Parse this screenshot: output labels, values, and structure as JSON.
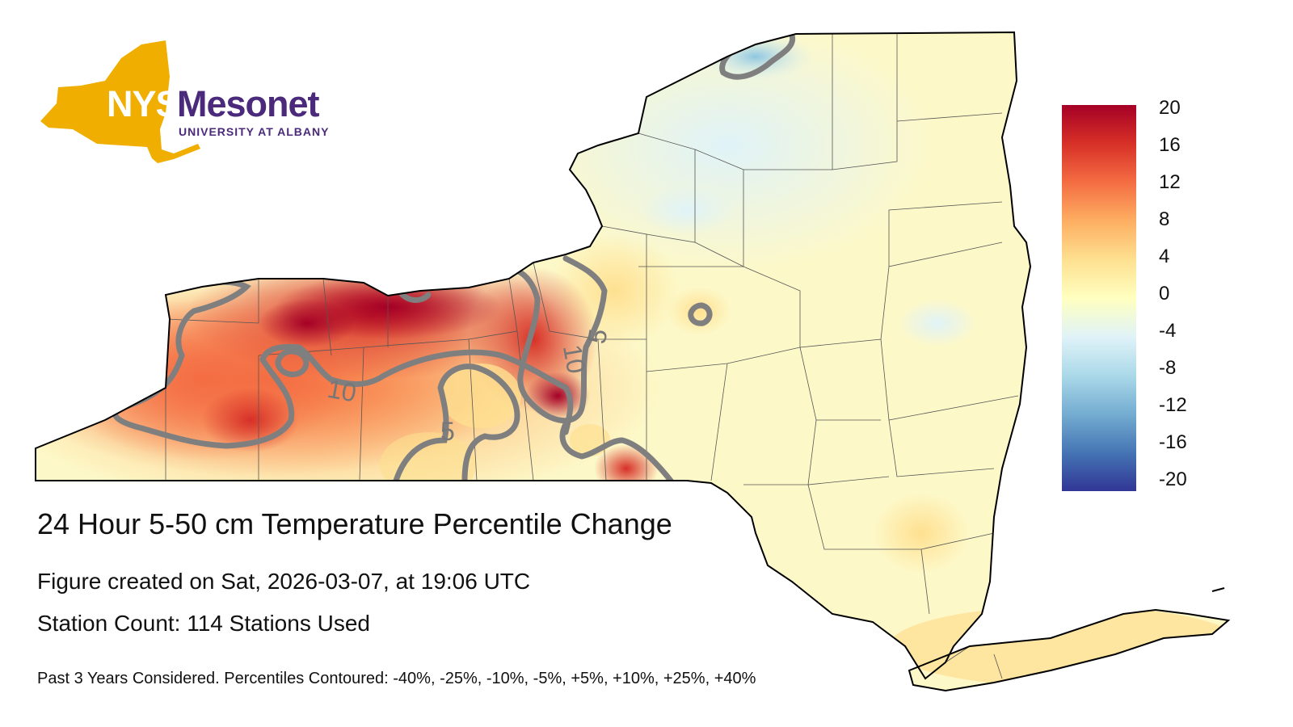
{
  "logo": {
    "state": "NYS",
    "name": "Mesonet",
    "org": "UNIVERSITY AT ALBANY",
    "state_color": "#f0ae00",
    "name_color": "#4b2a7b"
  },
  "title": "24 Hour 5-50 cm Temperature Percentile Change",
  "subtitle": "Figure created on Sat, 2026-03-07, at 19:06 UTC",
  "stations": "Station Count: 114 Stations Used",
  "footnote": "Past 3 Years Considered. Percentiles Contoured: -40%, -25%, -10%, -5%, +5%, +10%, +25%, +40%",
  "colorbar": {
    "ticks": [
      "20",
      "16",
      "12",
      "8",
      "4",
      "0",
      "-4",
      "-8",
      "-12",
      "-16",
      "-20"
    ],
    "colors": [
      "#a50026",
      "#d73027",
      "#f46d43",
      "#fdae61",
      "#fee090",
      "#ffffbf",
      "#e0f3f8",
      "#abd9e9",
      "#74add1",
      "#4575b4",
      "#313695"
    ]
  },
  "contour_labels": [
    "10",
    "5",
    "5",
    "10"
  ]
}
